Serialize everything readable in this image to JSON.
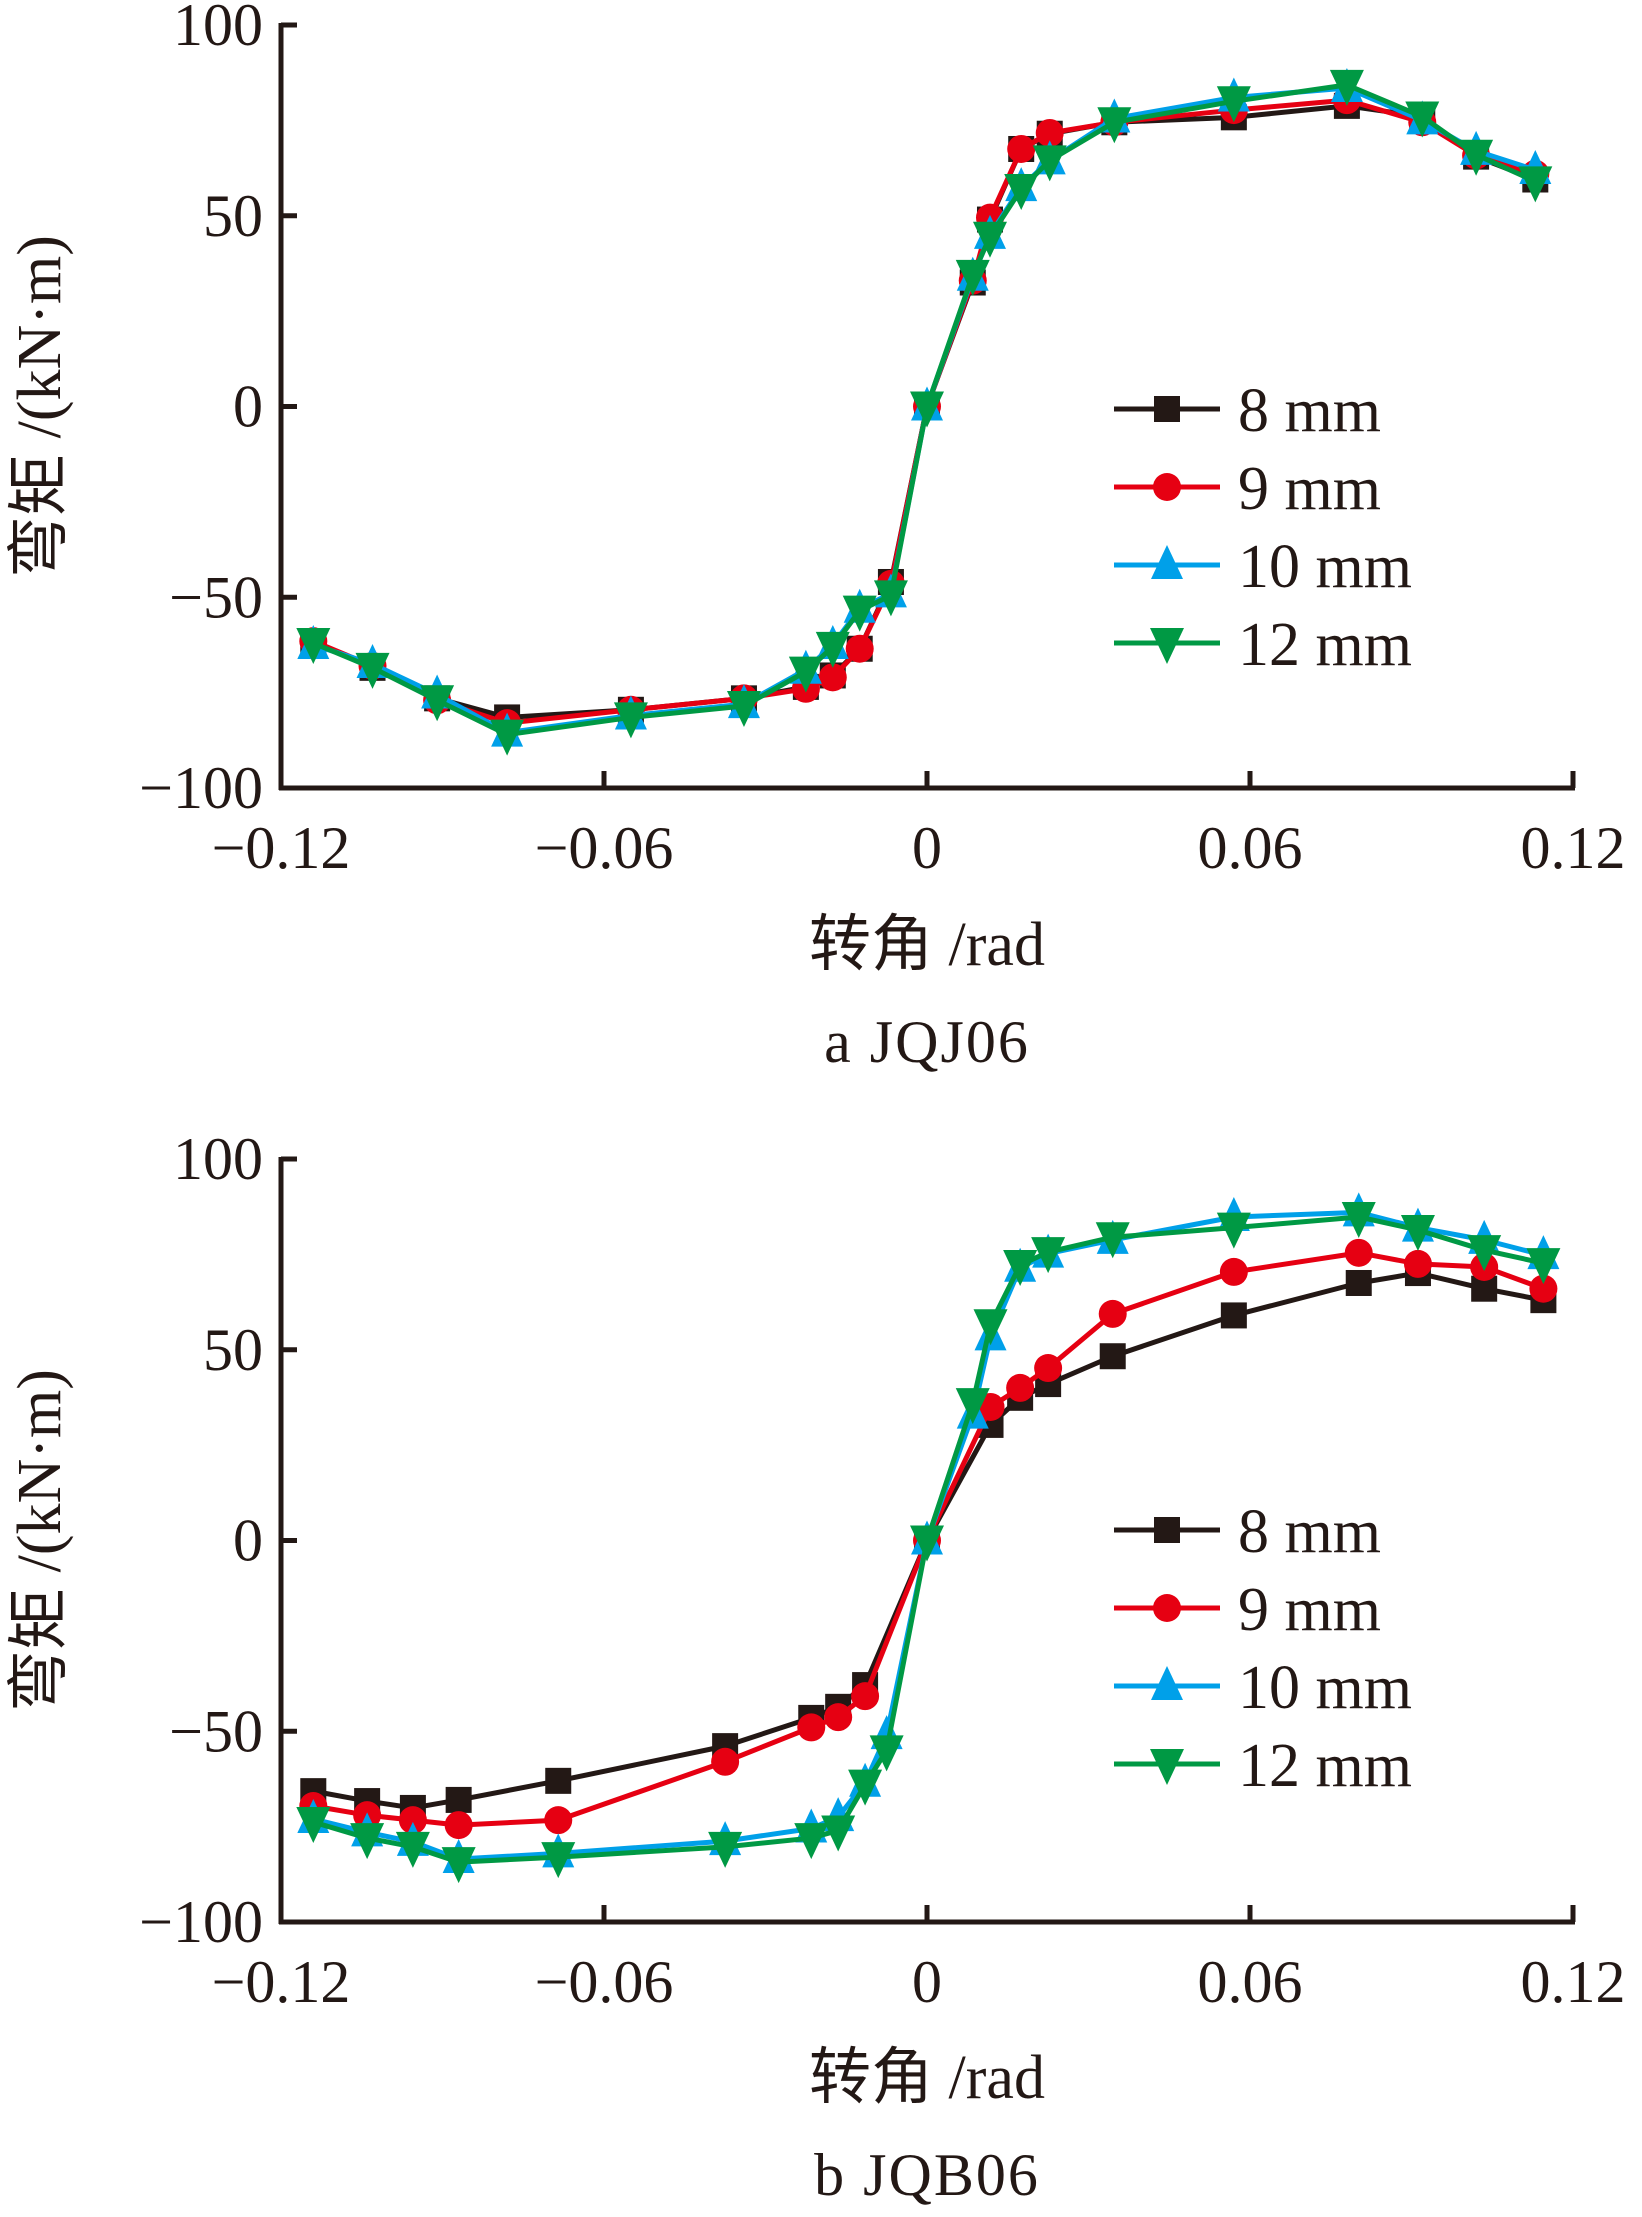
{
  "chart_data": [
    {
      "type": "line",
      "panel": "a",
      "caption": "a  JQJ06",
      "title": "",
      "xlabel": "转角 /rad",
      "ylabel": "弯矩 /(kN·m)",
      "xlim": [
        -0.12,
        0.12
      ],
      "ylim": [
        -100,
        100
      ],
      "xticks": [
        -0.12,
        -0.06,
        0,
        0.06,
        0.12
      ],
      "xtick_labels": [
        "−0.12",
        "−0.06",
        "0",
        "0.06",
        "0.12"
      ],
      "yticks": [
        100,
        50,
        0,
        -50,
        -100
      ],
      "ytick_labels": [
        "100",
        "50",
        "0",
        "−50",
        "−100"
      ],
      "grid": false,
      "legend_position": "center-right",
      "x": [
        -0.114,
        -0.103,
        -0.091,
        -0.078,
        -0.055,
        -0.034,
        -0.0225,
        -0.0175,
        -0.0125,
        -0.0067,
        0,
        0.0085,
        0.0117,
        0.0175,
        0.0228,
        0.0348,
        0.057,
        0.078,
        0.092,
        0.102,
        0.113
      ],
      "series": [
        {
          "name": "8 mm",
          "color": "#231815",
          "marker": "square",
          "values": [
            -61.5,
            -68.5,
            -76.5,
            -81.5,
            -79.5,
            -76.5,
            -73.5,
            -70.5,
            -63.5,
            -46,
            0,
            32.5,
            49,
            67.5,
            71.5,
            74.5,
            75.8,
            78.8,
            76,
            65.5,
            59.5
          ]
        },
        {
          "name": "9 mm",
          "color": "#e60012",
          "marker": "circle",
          "values": [
            -61.5,
            -68,
            -77,
            -83,
            -79.5,
            -76.5,
            -74,
            -71,
            -63.5,
            -46.5,
            0,
            33,
            49.5,
            67.5,
            71.7,
            74.5,
            77.7,
            80.3,
            74.5,
            65.8,
            61
          ]
        },
        {
          "name": "10 mm",
          "color": "#00a0e9",
          "marker": "triangle-up",
          "values": [
            -62.5,
            -67.5,
            -75.5,
            -85.5,
            -81,
            -78,
            -69,
            -62.5,
            -53,
            -49,
            0,
            34,
            45,
            57.5,
            64.5,
            75.5,
            81,
            83.5,
            75,
            67,
            62
          ]
        },
        {
          "name": "12 mm",
          "color": "#009944",
          "marker": "triangle-down",
          "values": [
            -62,
            -68.5,
            -77,
            -86,
            -81.5,
            -78.5,
            -69.5,
            -63,
            -53.5,
            -49.5,
            0,
            34.5,
            44.5,
            57,
            64.5,
            74.5,
            80,
            84.3,
            76,
            66,
            59
          ]
        }
      ]
    },
    {
      "type": "line",
      "panel": "b",
      "caption": "b  JQB06",
      "title": "",
      "xlabel": "转角 /rad",
      "ylabel": "弯矩 /(kN·m)",
      "xlim": [
        -0.12,
        0.12
      ],
      "ylim": [
        -100,
        100
      ],
      "xticks": [
        -0.12,
        -0.06,
        0,
        0.06,
        0.12
      ],
      "xtick_labels": [
        "−0.12",
        "−0.06",
        "0",
        "0.06",
        "0.12"
      ],
      "yticks": [
        100,
        50,
        0,
        -50,
        -100
      ],
      "ytick_labels": [
        "100",
        "50",
        "0",
        "−50",
        "−100"
      ],
      "grid": false,
      "legend_position": "center-right",
      "x": [
        -0.114,
        -0.104,
        -0.0955,
        -0.087,
        -0.0685,
        -0.0375,
        -0.0215,
        -0.0165,
        -0.0115,
        -0.0075,
        0,
        0.0085,
        0.0118,
        0.0173,
        0.0225,
        0.0345,
        0.057,
        0.0802,
        0.0912,
        0.1035,
        0.1145
      ],
      "series": [
        {
          "name": "8 mm",
          "color": "#231815",
          "marker": "square",
          "values": [
            -65.7,
            -68.3,
            -70.1,
            -68,
            -63,
            -53.9,
            -46.5,
            -43.6,
            -37.9,
            null,
            0,
            null,
            30.3,
            37.4,
            41,
            48.3,
            59,
            67.5,
            70.1,
            66,
            63
          ]
        },
        {
          "name": "9 mm",
          "color": "#e60012",
          "marker": "circle",
          "values": [
            -69.6,
            -72,
            -73.3,
            -74.6,
            -73.3,
            -58,
            -49,
            -46.3,
            -40.8,
            null,
            0,
            null,
            35,
            40,
            45.2,
            59.4,
            70.4,
            75.4,
            72.5,
            71.7,
            66
          ]
        },
        {
          "name": "10 mm",
          "color": "#00a0e9",
          "marker": "triangle-up",
          "values": [
            -73,
            -76.5,
            -79,
            -83.5,
            -82,
            -78.8,
            -75.5,
            -72.5,
            -63.5,
            -51,
            0,
            33,
            53.5,
            71.5,
            75.2,
            78.8,
            84.8,
            86,
            82,
            78.8,
            74.8
          ]
        },
        {
          "name": "12 mm",
          "color": "#009944",
          "marker": "triangle-down",
          "values": [
            -73.8,
            -78,
            -80.3,
            -84.3,
            -83,
            -80.3,
            -78,
            -76,
            -64,
            -55,
            0,
            36,
            56.7,
            72.2,
            75.6,
            79.5,
            82,
            84.8,
            81.4,
            76.1,
            72.7
          ]
        }
      ]
    }
  ]
}
